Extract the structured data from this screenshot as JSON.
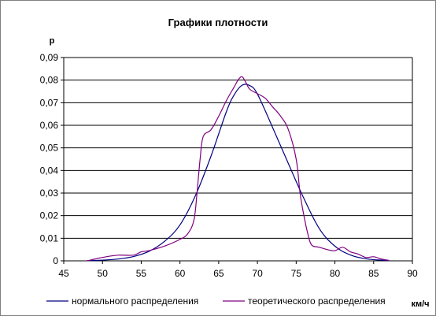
{
  "chart_data": {
    "type": "line",
    "title": "Графики плотности",
    "ylabel": "p",
    "xlabel": "км/ч",
    "xlim": [
      45,
      90
    ],
    "ylim": [
      0,
      0.09
    ],
    "x_ticks": [
      45,
      50,
      55,
      60,
      65,
      70,
      75,
      80,
      85,
      90
    ],
    "x_tick_labels": [
      "45",
      "50",
      "55",
      "60",
      "65",
      "70",
      "75",
      "80",
      "85",
      "90"
    ],
    "y_ticks": [
      0,
      0.01,
      0.02,
      0.03,
      0.04,
      0.05,
      0.06,
      0.07,
      0.08,
      0.09
    ],
    "y_tick_labels": [
      "0",
      "0,01",
      "0,02",
      "0,03",
      "0,04",
      "0,05",
      "0,06",
      "0,07",
      "0,08",
      "0,09"
    ],
    "grid": "horizontal",
    "legend_position": "bottom",
    "series": [
      {
        "name": "нормального распределения",
        "color": "#000080",
        "x": [
          48,
          50,
          52,
          54,
          56,
          58,
          60,
          62,
          64,
          66,
          67,
          68,
          69,
          70,
          72,
          74,
          76,
          78,
          80,
          82,
          84,
          86,
          87
        ],
        "y": [
          0.0001,
          0.0003,
          0.0008,
          0.0019,
          0.0042,
          0.0086,
          0.0159,
          0.0289,
          0.0463,
          0.0661,
          0.0735,
          0.0777,
          0.0776,
          0.0738,
          0.0587,
          0.043,
          0.0276,
          0.0142,
          0.0065,
          0.0026,
          0.0009,
          0.0003,
          0.0001
        ]
      },
      {
        "name": "теоретического распределения",
        "color": "#800080",
        "x": [
          48,
          50,
          52,
          54,
          55,
          56,
          58,
          60,
          61,
          61.8,
          62.2,
          62.6,
          63,
          64,
          65,
          66,
          67,
          67.5,
          68,
          68.5,
          69,
          70,
          71,
          72,
          73,
          74,
          75,
          75.5,
          76,
          76.5,
          77,
          78,
          79,
          80,
          81,
          82,
          83,
          84,
          85,
          86,
          87
        ],
        "y": [
          0,
          0.0015,
          0.0025,
          0.0025,
          0.004,
          0.0045,
          0.0065,
          0.0095,
          0.012,
          0.018,
          0.03,
          0.045,
          0.055,
          0.058,
          0.064,
          0.071,
          0.077,
          0.08,
          0.0815,
          0.079,
          0.076,
          0.074,
          0.072,
          0.068,
          0.064,
          0.058,
          0.045,
          0.03,
          0.02,
          0.012,
          0.007,
          0.006,
          0.005,
          0.0045,
          0.006,
          0.004,
          0.003,
          0.0015,
          0.0018,
          0.0008,
          0.0002
        ]
      }
    ]
  }
}
